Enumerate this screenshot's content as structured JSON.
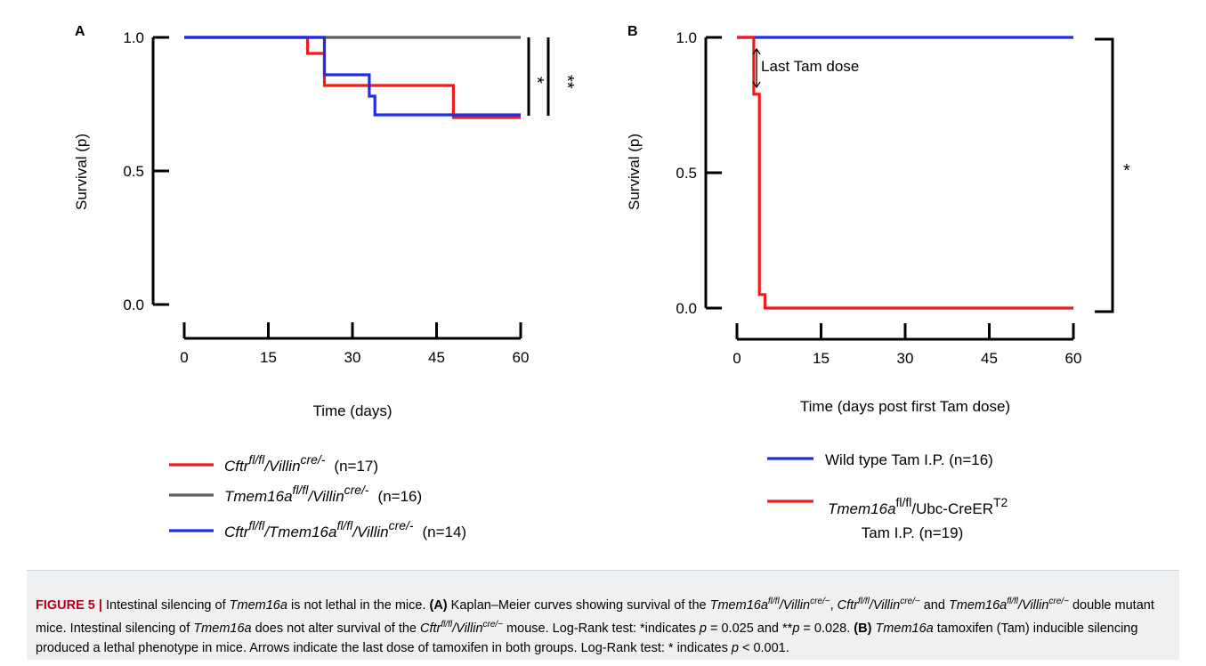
{
  "colors": {
    "red": "#ee1c1c",
    "gray": "#5f5f5f",
    "blue": "#1f2ee6",
    "axis": "#000000"
  },
  "chart_data": [
    {
      "panel": "A",
      "type": "line",
      "step": true,
      "xlabel": "Time (days)",
      "ylabel": "Survival (p)",
      "xlim": [
        0,
        60
      ],
      "ylim": [
        0,
        1
      ],
      "xticks": [
        "0",
        "15",
        "30",
        "45",
        "60"
      ],
      "yticks": [
        "0.0",
        "0.5",
        "1.0"
      ],
      "series": [
        {
          "key": "cftr",
          "color": "red",
          "points": [
            [
              0,
              1.0
            ],
            [
              22,
              1.0
            ],
            [
              22,
              0.94
            ],
            [
              25,
              0.94
            ],
            [
              25,
              0.82
            ],
            [
              48,
              0.82
            ],
            [
              48,
              0.7
            ],
            [
              60,
              0.7
            ]
          ]
        },
        {
          "key": "tmem",
          "color": "gray",
          "points": [
            [
              0,
              1.0
            ],
            [
              60,
              1.0
            ]
          ]
        },
        {
          "key": "dbl",
          "color": "blue",
          "points": [
            [
              0,
              1.0
            ],
            [
              25,
              1.0
            ],
            [
              25,
              0.86
            ],
            [
              33,
              0.86
            ],
            [
              33,
              0.78
            ],
            [
              34,
              0.78
            ],
            [
              34,
              0.71
            ],
            [
              60,
              0.71
            ]
          ]
        }
      ],
      "significance": [
        "*",
        "**"
      ],
      "legend": [
        {
          "key": "cftr",
          "color": "red",
          "n": "(n=17)",
          "parts": [
            [
              "Cftr",
              "i"
            ],
            [
              "fl/fl",
              "isup"
            ],
            [
              "/Villin",
              "i"
            ],
            [
              "cre/-",
              "isup"
            ]
          ]
        },
        {
          "key": "tmem",
          "color": "gray",
          "n": "(n=16)",
          "parts": [
            [
              "Tmem16a",
              "i"
            ],
            [
              "fl/fl",
              "isup"
            ],
            [
              "/Villin",
              "i"
            ],
            [
              "cre/-",
              "isup"
            ]
          ]
        },
        {
          "key": "dbl",
          "color": "blue",
          "n": "(n=14)",
          "parts": [
            [
              "Cftr",
              "i"
            ],
            [
              "fl/fl",
              "isup"
            ],
            [
              "/Tmem16a",
              "i"
            ],
            [
              "fl/fl",
              "isup"
            ],
            [
              "/Villin",
              "i"
            ],
            [
              "cre/-",
              "isup"
            ]
          ]
        }
      ]
    },
    {
      "panel": "B",
      "type": "line",
      "step": true,
      "xlabel": "Time (days post first Tam dose)",
      "ylabel": "Survival (p)",
      "xlim": [
        0,
        60
      ],
      "ylim": [
        0,
        1
      ],
      "xticks": [
        "0",
        "15",
        "30",
        "45",
        "60"
      ],
      "yticks": [
        "0.0",
        "0.5",
        "1.0"
      ],
      "annotation": "Last Tam dose",
      "annotation_x": 3.5,
      "series": [
        {
          "key": "wt",
          "color": "blue",
          "points": [
            [
              0,
              1.0
            ],
            [
              60,
              1.0
            ]
          ]
        },
        {
          "key": "tmemubc",
          "color": "red",
          "points": [
            [
              0,
              1.0
            ],
            [
              3,
              1.0
            ],
            [
              3,
              0.79
            ],
            [
              4,
              0.79
            ],
            [
              4,
              0.05
            ],
            [
              5,
              0.05
            ],
            [
              5,
              0.0
            ],
            [
              60,
              0.0
            ]
          ]
        }
      ],
      "significance": [
        "*"
      ],
      "legend": [
        {
          "key": "wt",
          "color": "blue",
          "text": "Wild type Tam I.P. (n=16)"
        },
        {
          "key": "tmemubc",
          "color": "red",
          "parts": [
            [
              "Tmem16a",
              "i"
            ],
            [
              "fl/fl",
              "sup"
            ],
            [
              "/Ubc-CreER",
              ""
            ],
            [
              "T2",
              "sup"
            ]
          ],
          "line2": "Tam I.P. (n=19)"
        }
      ]
    }
  ],
  "caption": [
    [
      "FIGURE 5 |",
      "fig"
    ],
    [
      " Intestinal silencing of ",
      ""
    ],
    [
      "Tmem16a",
      "i"
    ],
    [
      " is not lethal in the mice. ",
      ""
    ],
    [
      "(A)",
      "b"
    ],
    [
      " Kaplan–Meier curves showing survival of the ",
      ""
    ],
    [
      "Tmem16a",
      "i"
    ],
    [
      "fl/fl",
      "isup"
    ],
    [
      "/Villin",
      "i"
    ],
    [
      "cre/−",
      "isup"
    ],
    [
      ", ",
      ""
    ],
    [
      "Cftr",
      "i"
    ],
    [
      "fl/fl",
      "isup"
    ],
    [
      "/Villin",
      "i"
    ],
    [
      "cre/−",
      "isup"
    ],
    [
      " and ",
      ""
    ],
    [
      "Tmem16a",
      "i"
    ],
    [
      "fl/fl",
      "isup"
    ],
    [
      "/Villin",
      "i"
    ],
    [
      "cre/−",
      "isup"
    ],
    [
      " double mutant mice. Intestinal silencing of ",
      ""
    ],
    [
      "Tmem16a",
      "i"
    ],
    [
      " does not alter survival of the ",
      ""
    ],
    [
      "Cftr",
      "i"
    ],
    [
      "fl/fl",
      "isup"
    ],
    [
      "/Villin",
      "i"
    ],
    [
      "cre/−",
      "isup"
    ],
    [
      " mouse. Log-Rank test: *indicates ",
      ""
    ],
    [
      "p",
      "i"
    ],
    [
      " = 0.025 and **",
      ""
    ],
    [
      "p",
      "i"
    ],
    [
      " = 0.028. ",
      ""
    ],
    [
      "(B)",
      "b"
    ],
    [
      " ",
      ""
    ],
    [
      "Tmem16a",
      "i"
    ],
    [
      " tamoxifen (Tam) inducible silencing produced a lethal phenotype in mice. Arrows indicate the last dose of tamoxifen in both groups. Log-Rank test: * indicates ",
      ""
    ],
    [
      "p",
      "i"
    ],
    [
      " < 0.001.",
      ""
    ]
  ]
}
